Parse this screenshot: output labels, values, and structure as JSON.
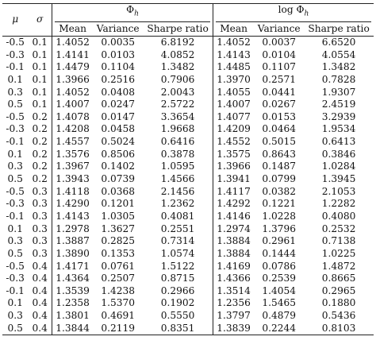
{
  "header": {
    "mu": "μ",
    "sigma": "σ",
    "group1": "Φ",
    "group1_sub": "h",
    "group2_prefix": "log Φ",
    "group2_sub": "h",
    "columns": [
      "Mean",
      "Variance",
      "Sharpe ratio",
      "Mean",
      "Variance",
      "Sharpe ratio"
    ]
  },
  "rows": [
    [
      "-0.5",
      "0.1",
      "1.4052",
      "0.0035",
      "6.8192",
      "1.4052",
      "0.0037",
      "6.6520"
    ],
    [
      "-0.3",
      "0.1",
      "1.4141",
      "0.0103",
      "4.0852",
      "1.4143",
      "0.0104",
      "4.0554"
    ],
    [
      "-0.1",
      "0.1",
      "1.4479",
      "0.1104",
      "1.3482",
      "1.4485",
      "0.1107",
      "1.3482"
    ],
    [
      "0.1",
      "0.1",
      "1.3966",
      "0.2516",
      "0.7906",
      "1.3970",
      "0.2571",
      "0.7828"
    ],
    [
      "0.3",
      "0.1",
      "1.4052",
      "0.0408",
      "2.0043",
      "1.4055",
      "0.0441",
      "1.9307"
    ],
    [
      "0.5",
      "0.1",
      "1.4007",
      "0.0247",
      "2.5722",
      "1.4007",
      "0.0267",
      "2.4519"
    ],
    [
      "-0.5",
      "0.2",
      "1.4078",
      "0.0147",
      "3.3654",
      "1.4077",
      "0.0153",
      "3.2939"
    ],
    [
      "-0.3",
      "0.2",
      "1.4208",
      "0.0458",
      "1.9668",
      "1.4209",
      "0.0464",
      "1.9534"
    ],
    [
      "-0.1",
      "0.2",
      "1.4557",
      "0.5024",
      "0.6416",
      "1.4552",
      "0.5015",
      "0.6413"
    ],
    [
      "0.1",
      "0.2",
      "1.3576",
      "0.8506",
      "0.3878",
      "1.3575",
      "0.8643",
      "0.3846"
    ],
    [
      "0.3",
      "0.2",
      "1.3967",
      "0.1402",
      "1.0595",
      "1.3966",
      "0.1487",
      "1.0284"
    ],
    [
      "0.5",
      "0.2",
      "1.3943",
      "0.0739",
      "1.4566",
      "1.3941",
      "0.0799",
      "1.3945"
    ],
    [
      "-0.5",
      "0.3",
      "1.4118",
      "0.0368",
      "2.1456",
      "1.4117",
      "0.0382",
      "2.1053"
    ],
    [
      "-0.3",
      "0.3",
      "1.4290",
      "0.1201",
      "1.2362",
      "1.4292",
      "0.1221",
      "1.2282"
    ],
    [
      "-0.1",
      "0.3",
      "1.4143",
      "1.0305",
      "0.4081",
      "1.4146",
      "1.0228",
      "0.4080"
    ],
    [
      "0.1",
      "0.3",
      "1.2978",
      "1.3627",
      "0.2551",
      "1.2974",
      "1.3796",
      "0.2532"
    ],
    [
      "0.3",
      "0.3",
      "1.3887",
      "0.2825",
      "0.7314",
      "1.3884",
      "0.2961",
      "0.7138"
    ],
    [
      "0.5",
      "0.3",
      "1.3890",
      "0.1353",
      "1.0574",
      "1.3884",
      "0.1444",
      "1.0225"
    ],
    [
      "-0.5",
      "0.4",
      "1.4171",
      "0.0761",
      "1.5122",
      "1.4169",
      "0.0786",
      "1.4872"
    ],
    [
      "-0.3",
      "0.4",
      "1.4364",
      "0.2507",
      "0.8715",
      "1.4366",
      "0.2539",
      "0.8665"
    ],
    [
      "-0.1",
      "0.4",
      "1.3539",
      "1.4238",
      "0.2966",
      "1.3514",
      "1.4054",
      "0.2965"
    ],
    [
      "0.1",
      "0.4",
      "1.2358",
      "1.5370",
      "0.1902",
      "1.2356",
      "1.5465",
      "0.1880"
    ],
    [
      "0.3",
      "0.4",
      "1.3801",
      "0.4691",
      "0.5550",
      "1.3797",
      "0.4879",
      "0.5436"
    ],
    [
      "0.5",
      "0.4",
      "1.3844",
      "0.2119",
      "0.8351",
      "1.3839",
      "0.2244",
      "0.8103"
    ]
  ]
}
